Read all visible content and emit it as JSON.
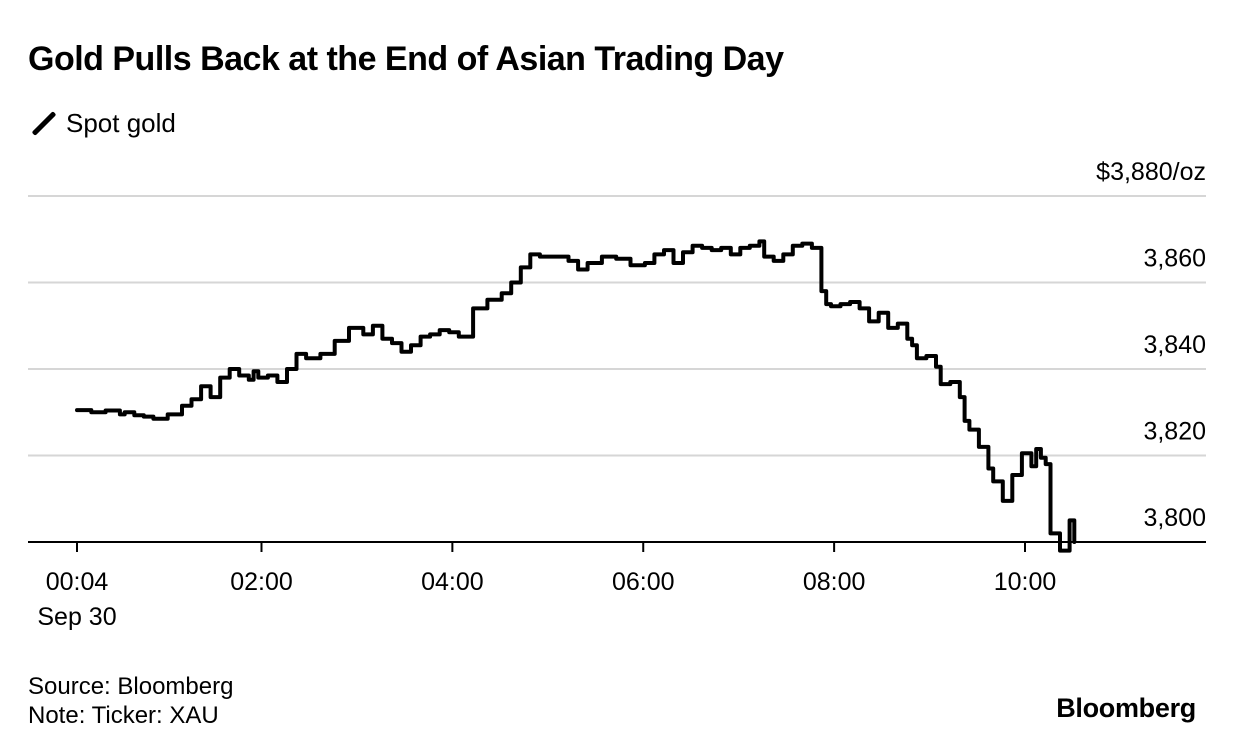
{
  "header": {
    "title": "Gold Pulls Back at the End of Asian Trading Day"
  },
  "legend": {
    "label": "Spot gold",
    "color": "#000000"
  },
  "footer": {
    "source": "Source: Bloomberg",
    "note": "Note: Ticker: XAU"
  },
  "brand": {
    "name": "Bloomberg"
  },
  "chart_data": {
    "type": "line",
    "title": "Gold Pulls Back at the End of Asian Trading Day",
    "xlabel": "",
    "ylabel": "$/oz",
    "ylim": [
      3795,
      3880
    ],
    "xlim_hours": [
      0.067,
      11.6
    ],
    "grid": true,
    "y_ticks": [
      {
        "value": 3880,
        "label": "$3,880/oz"
      },
      {
        "value": 3860,
        "label": "3,860"
      },
      {
        "value": 3840,
        "label": "3,840"
      },
      {
        "value": 3820,
        "label": "3,820"
      },
      {
        "value": 3800,
        "label": "3,800"
      }
    ],
    "x_ticks": [
      {
        "value": 0.067,
        "label": "00:04",
        "sublabel": "Sep 30"
      },
      {
        "value": 2.0,
        "label": "02:00"
      },
      {
        "value": 4.0,
        "label": "04:00"
      },
      {
        "value": 6.0,
        "label": "06:00"
      },
      {
        "value": 8.0,
        "label": "08:00"
      },
      {
        "value": 10.0,
        "label": "10:00"
      }
    ],
    "series": [
      {
        "name": "Spot gold",
        "color": "#000000",
        "x": [
          0.0,
          0.15,
          0.3,
          0.45,
          0.5,
          0.6,
          0.7,
          0.8,
          0.95,
          1.1,
          1.2,
          1.3,
          1.4,
          1.5,
          1.6,
          1.7,
          1.8,
          1.85,
          1.9,
          2.0,
          2.1,
          2.2,
          2.3,
          2.4,
          2.55,
          2.7,
          2.85,
          3.0,
          3.1,
          3.2,
          3.3,
          3.4,
          3.5,
          3.6,
          3.7,
          3.8,
          3.9,
          4.0,
          4.15,
          4.3,
          4.45,
          4.55,
          4.65,
          4.75,
          4.85,
          5.0,
          5.15,
          5.25,
          5.35,
          5.5,
          5.65,
          5.8,
          5.95,
          6.05,
          6.15,
          6.25,
          6.35,
          6.45,
          6.55,
          6.65,
          6.75,
          6.85,
          6.95,
          7.05,
          7.15,
          7.2,
          7.3,
          7.4,
          7.5,
          7.6,
          7.7,
          7.8,
          7.85,
          7.9,
          8.0,
          8.1,
          8.2,
          8.3,
          8.4,
          8.5,
          8.6,
          8.7,
          8.75,
          8.8,
          8.9,
          9.0,
          9.05,
          9.15,
          9.25,
          9.3,
          9.35,
          9.45,
          9.55,
          9.6,
          9.7,
          9.8,
          9.9,
          10.0,
          10.05,
          10.1,
          10.15,
          10.2,
          10.3,
          10.4,
          10.45
        ],
        "values": [
          3830.5,
          3830,
          3830.4,
          3829.5,
          3830,
          3829.3,
          3829,
          3828.5,
          3829.5,
          3831.5,
          3833,
          3836,
          3833.5,
          3838,
          3840,
          3838.5,
          3837.5,
          3839.5,
          3838,
          3838.5,
          3837,
          3840,
          3843.5,
          3842.5,
          3843.5,
          3846.5,
          3849.5,
          3848,
          3850,
          3847,
          3846,
          3844,
          3845.5,
          3847.5,
          3848,
          3849,
          3848.5,
          3847.5,
          3854,
          3856,
          3857.5,
          3860,
          3863.5,
          3866.5,
          3866,
          3866,
          3865,
          3863,
          3864.5,
          3866,
          3865.5,
          3864,
          3864.5,
          3866.5,
          3867.5,
          3864.5,
          3867,
          3868.5,
          3868,
          3867.5,
          3868,
          3866.5,
          3868,
          3868.5,
          3869.5,
          3866,
          3865,
          3866.5,
          3868.5,
          3869,
          3868,
          3858,
          3855,
          3854.5,
          3855,
          3855.5,
          3854,
          3851,
          3853,
          3849.5,
          3850.5,
          3847,
          3845.5,
          3842.5,
          3843,
          3840.5,
          3836.5,
          3837,
          3833.5,
          3828,
          3826,
          3822,
          3817,
          3814,
          3809.5,
          3815.5,
          3820.5,
          3817.5,
          3821.5,
          3819.5,
          3818,
          3802,
          3798,
          3805,
          3800
        ]
      }
    ]
  }
}
